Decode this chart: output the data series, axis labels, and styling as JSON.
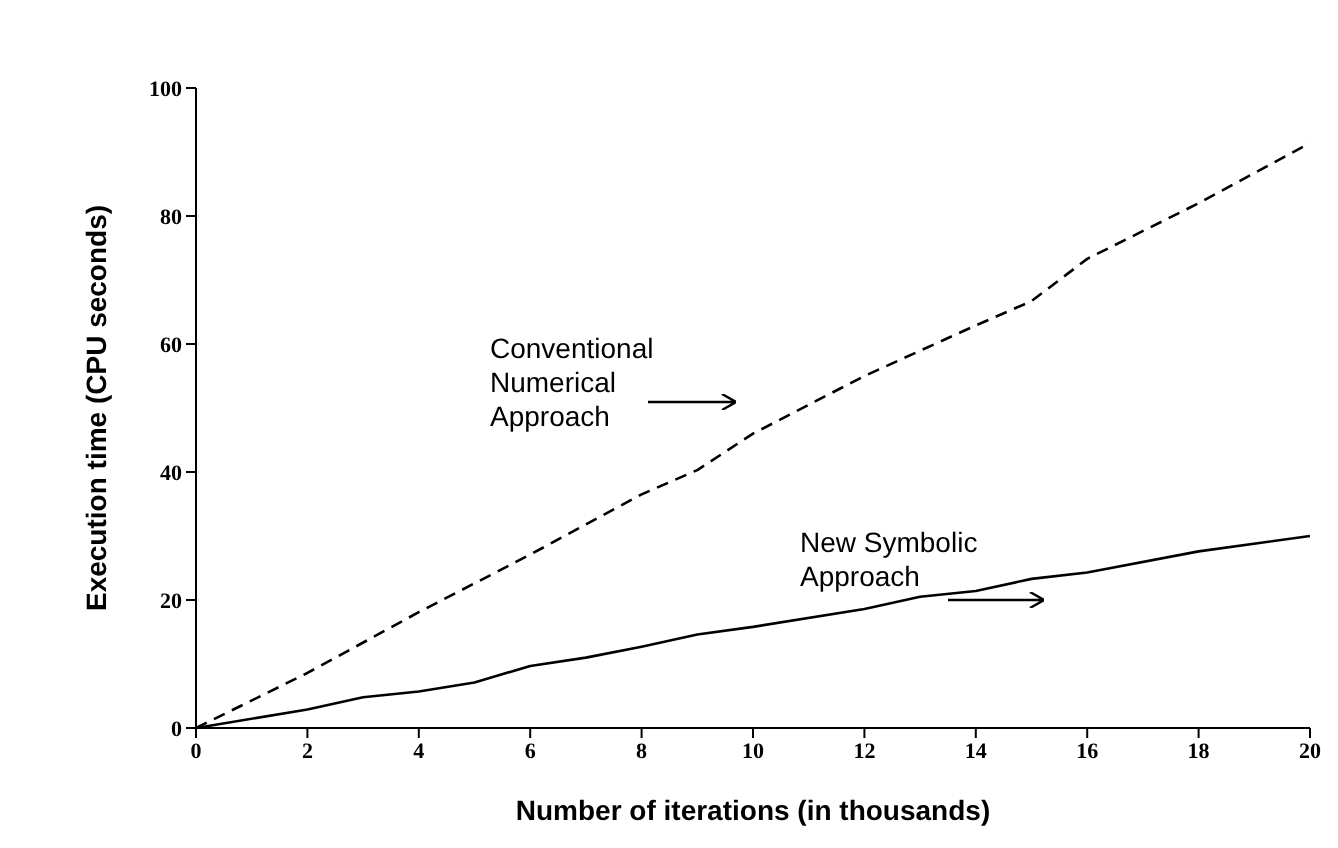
{
  "chart_data": {
    "type": "line",
    "xlabel": "Number of iterations (in thousands)",
    "ylabel": "Execution time (CPU seconds)",
    "xlim": [
      0,
      20
    ],
    "xticks": [
      0,
      2,
      4,
      6,
      8,
      10,
      12,
      14,
      16,
      18,
      20
    ],
    "ylim": [
      0,
      100
    ],
    "yticks": [
      0,
      20,
      40,
      60,
      80,
      100
    ],
    "grid": false,
    "marker": "none",
    "series": [
      {
        "name": "Conventional\nNumerical\nApproach",
        "color": "#000000",
        "line_style": "dashed",
        "x": [
          0,
          2,
          4,
          6,
          8,
          9,
          10,
          12,
          14,
          15,
          16,
          18,
          20
        ],
        "values": [
          0,
          8.6,
          18.1,
          27.1,
          36.5,
          40.3,
          46,
          55,
          62.9,
          66.7,
          73.3,
          82,
          91.4
        ]
      },
      {
        "name": "New Symbolic\nApproach",
        "color": "#000000",
        "line_style": "solid",
        "x": [
          0,
          2,
          3,
          4,
          5,
          6,
          7,
          8,
          9,
          10,
          12,
          13,
          14,
          15,
          16,
          18,
          20
        ],
        "values": [
          0,
          2.9,
          4.8,
          5.7,
          7.1,
          9.7,
          11,
          12.7,
          14.6,
          15.8,
          18.6,
          20.5,
          21.4,
          23.3,
          24.3,
          27.6,
          30
        ]
      }
    ]
  }
}
